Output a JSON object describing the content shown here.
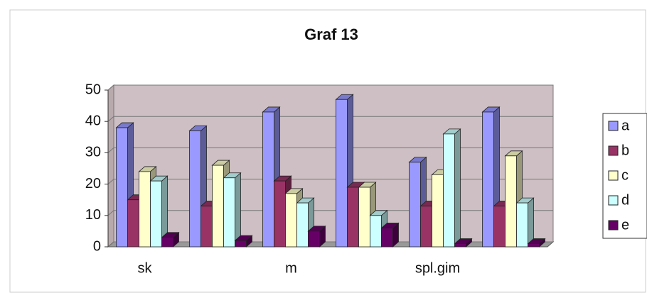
{
  "chart_data": {
    "type": "bar",
    "title": "Graf 13",
    "categories": [
      "sk",
      null,
      "m",
      null,
      "spl.gim",
      null
    ],
    "series": [
      {
        "name": "a",
        "color": "#9999ff",
        "values": [
          38,
          37,
          43,
          47,
          27,
          43
        ]
      },
      {
        "name": "b",
        "color": "#993366",
        "values": [
          15,
          13,
          21,
          19,
          13,
          13
        ]
      },
      {
        "name": "c",
        "color": "#ffffcc",
        "values": [
          24,
          26,
          17,
          19,
          23,
          29
        ]
      },
      {
        "name": "d",
        "color": "#ccffff",
        "values": [
          21,
          22,
          14,
          10,
          36,
          14
        ]
      },
      {
        "name": "e",
        "color": "#660066",
        "values": [
          3,
          2,
          5,
          6,
          1,
          1
        ]
      }
    ],
    "ylim": [
      0,
      50
    ],
    "yticks": [
      0,
      10,
      20,
      30,
      40,
      50
    ],
    "grid": true,
    "legend": "right"
  }
}
